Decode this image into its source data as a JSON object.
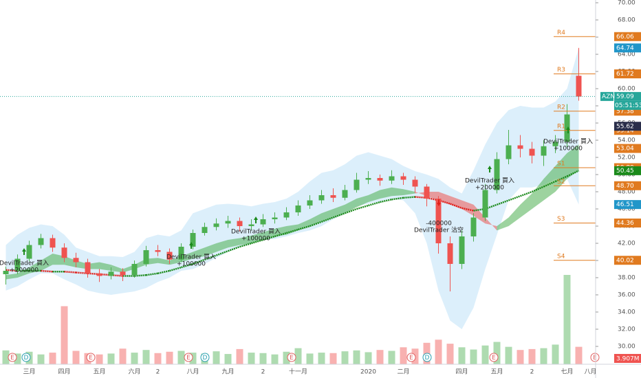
{
  "chart_data": {
    "type": "candlestick",
    "ticker": "AZN",
    "countdown": "05:51:53",
    "categories": [
      null,
      null,
      "三月",
      null,
      null,
      "四月",
      null,
      null,
      "五月",
      null,
      null,
      "六月",
      null,
      "2",
      null,
      null,
      "八月",
      null,
      null,
      "九月",
      null,
      null,
      "2",
      null,
      null,
      "十一月",
      null,
      null,
      null,
      null,
      null,
      "2020",
      null,
      null,
      "二月",
      null,
      null,
      null,
      null,
      "四月",
      null,
      null,
      "五月",
      null,
      null,
      "2",
      null,
      null,
      "七月",
      null,
      "八月"
    ],
    "open": [
      38.4,
      38.8,
      40.2,
      41.8,
      42.6,
      41.5,
      40.3,
      39.8,
      38.5,
      38.2,
      38.7,
      38.3,
      39.6,
      41.2,
      41.0,
      40.1,
      41.6,
      43.2,
      43.9,
      44.3,
      44.6,
      44.0,
      44.2,
      44.8,
      45.0,
      45.6,
      46.4,
      47.0,
      47.6,
      47.3,
      48.2,
      49.4,
      49.6,
      49.3,
      49.8,
      49.4,
      48.6,
      47.2,
      42.0,
      39.6,
      42.8,
      45.0,
      48.2,
      51.8,
      53.4,
      53.0,
      52.2,
      53.3,
      53.8,
      61.5,
      null
    ],
    "high": [
      39.3,
      40.7,
      42.3,
      43.1,
      43.0,
      42.0,
      40.9,
      40.2,
      39.0,
      39.2,
      39.1,
      40.0,
      41.7,
      41.8,
      41.4,
      42.0,
      43.6,
      44.4,
      44.9,
      45.2,
      45.0,
      44.8,
      45.4,
      45.6,
      46.2,
      47.0,
      47.6,
      48.2,
      48.4,
      48.8,
      50.2,
      50.4,
      50.0,
      50.5,
      50.2,
      49.8,
      48.9,
      47.5,
      42.8,
      43.5,
      45.5,
      48.9,
      52.6,
      55.2,
      54.6,
      53.8,
      54.0,
      54.6,
      58.2,
      64.74,
      null
    ],
    "low": [
      37.2,
      38.4,
      39.9,
      41.4,
      41.0,
      39.8,
      39.2,
      38.0,
      37.5,
      37.8,
      37.6,
      38.0,
      39.3,
      40.5,
      39.6,
      39.8,
      41.3,
      42.9,
      43.5,
      43.8,
      43.4,
      43.5,
      43.9,
      44.3,
      44.7,
      45.2,
      46.0,
      46.6,
      46.8,
      47.0,
      47.9,
      48.9,
      48.7,
      48.9,
      48.8,
      47.9,
      46.3,
      40.8,
      36.4,
      39.0,
      42.2,
      44.6,
      47.8,
      51.2,
      52.0,
      51.3,
      51.0,
      52.5,
      53.2,
      58.6,
      null
    ],
    "close": [
      38.8,
      40.2,
      41.8,
      42.6,
      41.5,
      40.3,
      39.8,
      38.5,
      38.2,
      38.7,
      38.3,
      39.6,
      41.2,
      41.0,
      40.1,
      41.6,
      43.2,
      43.9,
      44.3,
      44.6,
      44.0,
      44.2,
      44.8,
      45.0,
      45.6,
      46.4,
      47.0,
      47.6,
      47.3,
      48.2,
      49.4,
      49.6,
      49.3,
      49.8,
      49.4,
      48.6,
      47.2,
      42.0,
      39.6,
      42.8,
      45.0,
      48.2,
      51.8,
      53.4,
      53.0,
      52.2,
      53.3,
      53.8,
      57.0,
      59.09,
      null
    ],
    "volume": [
      3.1,
      2.4,
      2.8,
      2.2,
      2.6,
      13.0,
      3.0,
      2.5,
      2.2,
      2.4,
      3.5,
      2.6,
      3.2,
      2.5,
      2.8,
      3.0,
      2.6,
      2.4,
      2.9,
      2.3,
      3.4,
      2.6,
      2.5,
      2.2,
      2.8,
      3.6,
      2.4,
      2.6,
      2.5,
      2.9,
      3.1,
      2.7,
      3.2,
      3.0,
      3.8,
      3.5,
      4.8,
      5.5,
      4.6,
      3.8,
      3.3,
      4.2,
      5.0,
      3.9,
      3.2,
      3.4,
      3.6,
      4.4,
      20.0,
      3.907,
      null
    ],
    "volume_value_labels": [
      null,
      null,
      null,
      null,
      null,
      null,
      null,
      null,
      null,
      null,
      null,
      null,
      null,
      null,
      null,
      null,
      null,
      null,
      null,
      null,
      null,
      null,
      null,
      null,
      null,
      null,
      null,
      null,
      null,
      null,
      null,
      null,
      null,
      null,
      null,
      null,
      null,
      null,
      null,
      null,
      null,
      null,
      null,
      null,
      null,
      null,
      null,
      null,
      null,
      "3.907M",
      null
    ],
    "ma": [
      38.9,
      38.8,
      38.8,
      38.8,
      38.7,
      38.7,
      38.6,
      38.5,
      38.4,
      38.3,
      38.2,
      38.2,
      38.3,
      38.5,
      38.8,
      39.2,
      39.6,
      40.1,
      40.6,
      41.1,
      41.6,
      42.0,
      42.4,
      42.8,
      43.2,
      43.6,
      44.0,
      44.5,
      45.0,
      45.5,
      46.0,
      46.4,
      46.8,
      47.1,
      47.3,
      47.4,
      47.3,
      47.0,
      46.6,
      46.1,
      45.8,
      46.0,
      46.5,
      47.0,
      47.5,
      48.0,
      48.6,
      49.2,
      49.8,
      50.45,
      null
    ],
    "bb_upper": [
      41.8,
      43.0,
      43.8,
      44.2,
      44.0,
      43.0,
      41.5,
      41.0,
      40.5,
      40.5,
      40.4,
      41.0,
      42.6,
      43.0,
      42.8,
      43.5,
      45.5,
      46.0,
      46.5,
      46.6,
      46.5,
      46.3,
      46.6,
      46.8,
      47.2,
      48.0,
      49.2,
      50.2,
      50.5,
      51.2,
      52.2,
      52.6,
      52.2,
      51.8,
      51.0,
      50.4,
      50.0,
      49.5,
      48.5,
      47.8,
      50.5,
      53.5,
      56.0,
      57.5,
      58.0,
      57.8,
      57.8,
      58.5,
      60.0,
      64.74,
      null
    ],
    "bb_lower": [
      36.5,
      37.0,
      37.8,
      38.5,
      38.5,
      37.8,
      37.2,
      36.5,
      36.2,
      36.0,
      36.2,
      36.4,
      36.8,
      37.5,
      38.0,
      38.8,
      39.0,
      39.6,
      40.3,
      41.0,
      41.6,
      42.0,
      42.4,
      42.5,
      42.8,
      43.2,
      43.5,
      44.0,
      44.8,
      45.5,
      46.3,
      46.6,
      46.8,
      47.2,
      47.0,
      45.5,
      42.0,
      36.5,
      33.0,
      32.0,
      34.5,
      39.0,
      43.0,
      47.0,
      48.5,
      48.5,
      48.8,
      49.5,
      49.5,
      46.51,
      null
    ],
    "span_a": [
      38.3,
      38.5,
      39.2,
      40.0,
      40.8,
      40.5,
      40.0,
      39.6,
      39.8,
      39.5,
      39.0,
      39.5,
      40.2,
      40.3,
      40.0,
      40.5,
      41.0,
      41.5,
      42.0,
      42.4,
      42.6,
      42.9,
      43.3,
      43.7,
      44.0,
      44.2,
      44.8,
      45.5,
      46.0,
      46.5,
      47.2,
      47.6,
      48.2,
      48.5,
      48.3,
      48.0,
      47.5,
      47.0,
      46.5,
      46.0,
      45.2,
      44.3,
      44.0,
      45.0,
      46.5,
      47.8,
      49.5,
      51.0,
      52.5,
      53.5,
      null
    ],
    "span_b": [
      37.8,
      38.0,
      38.5,
      38.8,
      39.5,
      39.5,
      39.2,
      39.0,
      39.0,
      38.8,
      38.6,
      39.0,
      39.5,
      39.7,
      39.5,
      39.8,
      40.2,
      40.5,
      41.0,
      41.5,
      41.8,
      42.0,
      42.4,
      42.8,
      43.0,
      43.5,
      44.0,
      44.5,
      45.0,
      45.5,
      46.2,
      46.8,
      47.2,
      47.5,
      47.6,
      47.8,
      48.0,
      48.0,
      47.5,
      47.0,
      46.5,
      45.0,
      43.5,
      44.0,
      45.0,
      46.0,
      47.0,
      48.0,
      49.5,
      50.5,
      null
    ],
    "up_color": "#4caf50",
    "down_color": "#ef5350",
    "ma_up_color": "#1b8a1b",
    "ma_down_color": "#e0201b",
    "ylim": [
      28.2,
      70.32
    ],
    "yticks": [
      {
        "value": 30,
        "label": "30.00"
      },
      {
        "value": 32,
        "label": "32.00"
      },
      {
        "value": 34,
        "label": "34.00"
      },
      {
        "value": 36,
        "label": "36.00"
      },
      {
        "value": 38,
        "label": "38.00"
      },
      {
        "value": 40,
        "label": "40.00"
      },
      {
        "value": 42,
        "label": "42.00"
      },
      {
        "value": 44,
        "label": "44.00"
      },
      {
        "value": 46,
        "label": "46.00"
      },
      {
        "value": 48,
        "label": "48.00"
      },
      {
        "value": 50,
        "label": "50.00"
      },
      {
        "value": 52,
        "label": "52.00"
      },
      {
        "value": 54,
        "label": "54.00"
      },
      {
        "value": 56,
        "label": "56.00"
      },
      {
        "value": 58,
        "label": "58.00"
      },
      {
        "value": 60,
        "label": "60.00"
      },
      {
        "value": 62,
        "label": "62.00"
      },
      {
        "value": 64,
        "label": "64.00"
      },
      {
        "value": 66,
        "label": "66.00"
      },
      {
        "value": 68,
        "label": "68.00"
      },
      {
        "value": 70,
        "label": "70.00"
      }
    ],
    "pivots": [
      {
        "name": "R4",
        "value": 66.06,
        "label": "66.06"
      },
      {
        "name": "R3",
        "value": 61.72,
        "label": "61.72"
      },
      {
        "name": "R2",
        "value": 57.38,
        "label": "57.38"
      },
      {
        "name": "R1",
        "value": 55.14,
        "label": "55.14"
      },
      {
        "name": "S1",
        "value": 50.8,
        "label": "50.80"
      },
      {
        "name": "S2",
        "value": 48.7,
        "label": "48.70"
      },
      {
        "name": "S3",
        "value": 44.36,
        "label": "44.36"
      },
      {
        "name": "S4",
        "value": 40.02,
        "label": "40.02"
      }
    ],
    "pivot_color": "#e07a1f",
    "tags": [
      {
        "value": 64.74,
        "label": "64.74",
        "color": "#2196c9"
      },
      {
        "value": 59.09,
        "label": "59.09",
        "color": "#26a69a"
      },
      {
        "value": 55.62,
        "label": "55.62",
        "color": "#2a2e4a"
      },
      {
        "value": 53.04,
        "label": "53.04",
        "color": "#e07a1f"
      },
      {
        "value": 50.45,
        "label": "50.45",
        "color": "#1b8a1b"
      },
      {
        "value": 46.51,
        "label": "46.51",
        "color": "#2196c9"
      }
    ],
    "annotations": [
      {
        "text": "DevilTrader 買入",
        "qty": "+200000"
      },
      {
        "text": "DevilTrader 買入",
        "qty": "+100000"
      },
      {
        "text": "DevilTrader 買入",
        "qty": "+100000"
      },
      {
        "text": "DevilTrader 沽空",
        "qty": "-400000"
      },
      {
        "text": "DevilTrader 買入",
        "qty": "+200000"
      },
      {
        "text": "DevilTrader 買入",
        "qty": "+100000"
      }
    ],
    "events": [
      "E",
      "D",
      "E",
      "E",
      "D",
      "E",
      "E",
      "D",
      "E",
      "E"
    ]
  }
}
